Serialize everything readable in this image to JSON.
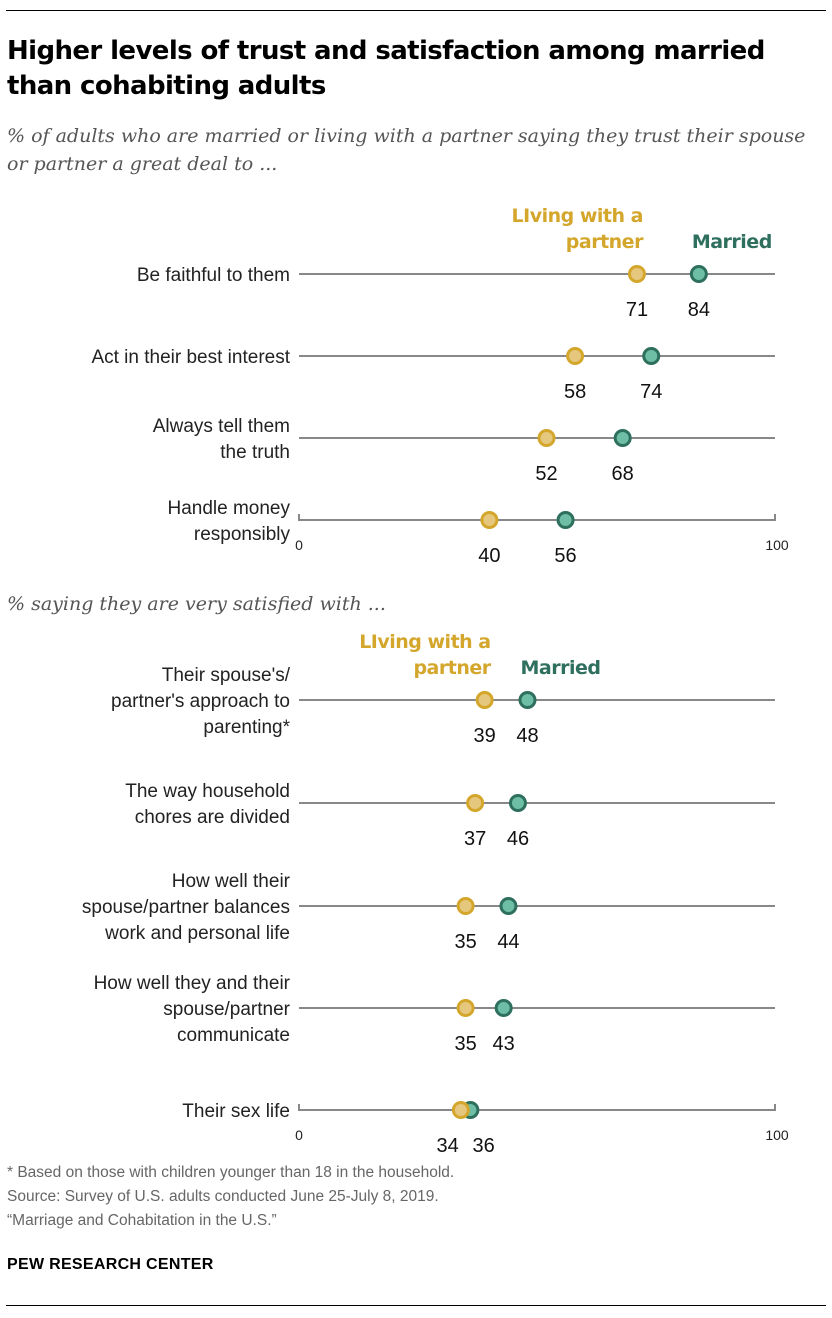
{
  "title": "Higher levels of trust and satisfaction among married than cohabiting adults",
  "footnote": "* Based on those with children younger than 18 in the household.",
  "source": "Source: Survey of U.S. adults conducted June 25-July 8, 2019.",
  "report": "“Marriage and Cohabitation in the U.S.”",
  "brand": "PEW RESEARCH CENTER",
  "colors": {
    "cohabiting": "#d4a72c",
    "cohabiting_fill": "#e5c77d",
    "married": "#2e6f5e",
    "married_fill": "#6dbea4",
    "axis": "#888888"
  },
  "chart_data": [
    {
      "type": "dot",
      "subtitle": "% of adults who are married or living with a partner saying they trust their spouse or partner a great deal to ...",
      "xlim": [
        0,
        100
      ],
      "tick_labels": [
        "0",
        "100"
      ],
      "legend": {
        "cohabiting": [
          "LIving with a",
          "partner"
        ],
        "married": [
          "Married"
        ]
      },
      "categories": [
        [
          "Be faithful to them"
        ],
        [
          "Act in their best interest"
        ],
        [
          "Always tell them",
          "the truth"
        ],
        [
          "Handle money",
          "responsibly"
        ]
      ],
      "series": [
        {
          "name": "LIving with a partner",
          "values": [
            71,
            58,
            52,
            40
          ]
        },
        {
          "name": "Married",
          "values": [
            84,
            74,
            68,
            56
          ]
        }
      ]
    },
    {
      "type": "dot",
      "subtitle": "% saying they are very satisfied with ...",
      "xlim": [
        0,
        100
      ],
      "tick_labels": [
        "0",
        "100"
      ],
      "legend": {
        "cohabiting": [
          "LIving with a",
          "partner"
        ],
        "married": [
          "Married"
        ]
      },
      "categories": [
        [
          "Their spouse's/",
          "partner's approach to",
          "parenting*"
        ],
        [
          "The way household",
          "chores are divided"
        ],
        [
          "How well their",
          "spouse/partner balances",
          "work and personal life"
        ],
        [
          "How well they and their",
          "spouse/partner",
          "communicate"
        ],
        [
          "Their sex life"
        ]
      ],
      "series": [
        {
          "name": "LIving with a partner",
          "values": [
            39,
            37,
            35,
            35,
            34
          ]
        },
        {
          "name": "Married",
          "values": [
            48,
            46,
            44,
            43,
            36
          ]
        }
      ]
    }
  ]
}
